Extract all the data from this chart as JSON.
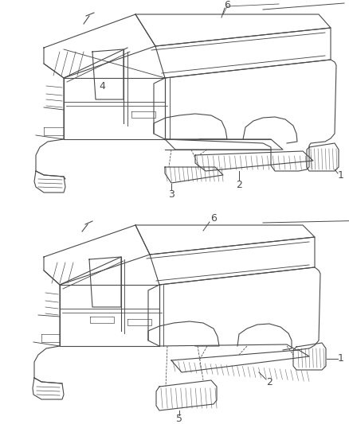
{
  "background_color": "#ffffff",
  "line_color": "#4a4a4a",
  "fig_width": 4.38,
  "fig_height": 5.33,
  "dpi": 100,
  "lw": 0.8
}
